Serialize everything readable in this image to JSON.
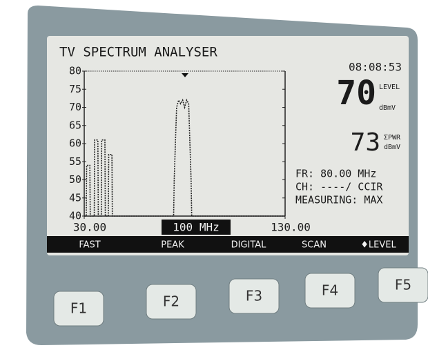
{
  "screen": {
    "title": "TV SPECTRUM ANALYSER",
    "time": "08:08:53",
    "level": {
      "value": 70,
      "label": "LEVEL",
      "unit": "dBmV"
    },
    "power": {
      "value": 73,
      "label": "ΣPWR",
      "unit": "dBmV"
    },
    "info": [
      "FR: 80.00 MHz",
      "CH: ----/ CCIR",
      "MEASURING: MAX"
    ],
    "span_label": "100 MHz",
    "softkeys": [
      "FAST",
      "PEAK",
      "DIGITAL",
      "SCAN",
      "♦LEVEL"
    ]
  },
  "buttons": [
    "F1",
    "F2",
    "F3",
    "F4",
    "F5"
  ],
  "chart_data": {
    "type": "line",
    "x": [
      30,
      31,
      31.2,
      32.8,
      33,
      35,
      35.2,
      36.8,
      37,
      38.5,
      38.7,
      40.3,
      40.5,
      42,
      42.2,
      43.8,
      44,
      74.5,
      74.8,
      75.5,
      76,
      77,
      78,
      79,
      80,
      81,
      82,
      82.5,
      83.2,
      83.5,
      130
    ],
    "values": [
      40,
      40,
      54,
      54,
      40,
      40,
      61,
      61,
      40,
      40,
      61,
      61,
      40,
      40,
      57,
      57,
      40,
      40,
      50,
      62,
      70,
      72,
      71,
      72,
      70,
      72,
      71,
      62,
      50,
      40,
      40
    ],
    "xlim": [
      30,
      130
    ],
    "xticks": [
      {
        "value": 30,
        "label": "30.00"
      },
      {
        "value": 130,
        "label": "130.00"
      }
    ],
    "ylim": [
      40,
      80
    ],
    "yticks": [
      40,
      45,
      50,
      55,
      60,
      65,
      70,
      75,
      80
    ],
    "color": "#222222"
  }
}
